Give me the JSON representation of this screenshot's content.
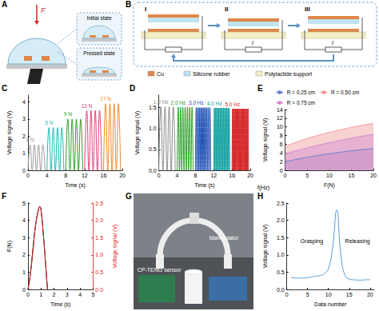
{
  "chart_data": [
    {
      "panel": "C",
      "type": "line",
      "xlabel": "Time (s)",
      "ylabel": "Voltage signal (V)",
      "xlim": [
        0,
        20
      ],
      "xticks": [
        0,
        4,
        8,
        12,
        16,
        20
      ],
      "ylim": [
        0,
        4.4
      ],
      "yticks": [
        0,
        1,
        2,
        3,
        4
      ],
      "grid": false,
      "series": [
        {
          "name": "1 N",
          "color": "#9e9e9e",
          "line_style": "solid",
          "x": [
            0,
            0.45,
            0.9,
            1.35,
            1.8,
            2.25,
            2.7,
            3.15,
            3.6
          ],
          "values": [
            0,
            1.5,
            0,
            1.5,
            0,
            1.5,
            0,
            1.5,
            0
          ]
        },
        {
          "name": "5 N",
          "color": "#1fb5b5",
          "line_style": "solid",
          "x": [
            4,
            4.45,
            4.9,
            5.35,
            5.8,
            6.25,
            6.7,
            7.15,
            7.6
          ],
          "values": [
            0,
            2.5,
            0,
            2.5,
            0,
            2.5,
            0,
            2.5,
            0
          ]
        },
        {
          "name": "9 N",
          "color": "#2ca02c",
          "line_style": "solid",
          "x": [
            8,
            8.45,
            8.9,
            9.35,
            9.8,
            10.25,
            10.7,
            11.15,
            11.6
          ],
          "values": [
            0,
            3.0,
            0,
            3.0,
            0,
            3.0,
            0,
            3.0,
            0
          ]
        },
        {
          "name": "13 N",
          "color": "#e0407a",
          "line_style": "solid",
          "x": [
            12,
            12.45,
            12.9,
            13.35,
            13.8,
            14.25,
            14.7,
            15.15,
            15.6
          ],
          "values": [
            0,
            3.5,
            0,
            3.5,
            0,
            3.5,
            0,
            3.5,
            0
          ]
        },
        {
          "name": "17 N",
          "color": "#f08a24",
          "line_style": "solid",
          "x": [
            16,
            16.45,
            16.9,
            17.35,
            17.8,
            18.25,
            18.7,
            19.15,
            19.6
          ],
          "values": [
            0,
            3.9,
            0,
            3.9,
            0,
            3.9,
            0,
            3.9,
            0
          ]
        }
      ]
    },
    {
      "panel": "D",
      "type": "line",
      "xlabel": "Time (s)",
      "ylabel": "Voltage signal (V)",
      "xlim": [
        0,
        20
      ],
      "xticks": [
        0,
        4,
        8,
        12,
        16,
        20
      ],
      "ylim": [
        0,
        1.8
      ],
      "yticks": [
        {
          "value": 0,
          "label": "0.0"
        },
        {
          "value": 0.5,
          "label": "0.5"
        },
        {
          "value": 1,
          "label": "1.0"
        },
        {
          "value": 1.5,
          "label": "1.5"
        }
      ],
      "grid": false,
      "series": [
        {
          "name": "1.0 Hz",
          "color": "#8c8c8c",
          "line_style": "solid",
          "x": [
            0,
            0.45,
            0.9,
            1.35,
            1.8,
            2.25,
            2.7,
            3.15,
            3.6
          ],
          "values": [
            0,
            1.52,
            0,
            1.52,
            0,
            1.52,
            0,
            1.52,
            0
          ]
        },
        {
          "name": "2.0 Hz",
          "color": "#2ca02c",
          "line_style": "solid",
          "x": [
            4,
            4.25,
            4.5,
            4.75,
            5,
            5.25,
            5.5,
            5.75,
            6,
            6.25,
            6.5,
            6.75,
            7,
            7.25,
            7.5
          ],
          "values": [
            0,
            1.51,
            0,
            1.51,
            0,
            1.51,
            0,
            1.51,
            0,
            1.51,
            0,
            1.51,
            0,
            1.51,
            0
          ]
        },
        {
          "name": "3.0 Hz",
          "color": "#1f4fb4",
          "line_style": "solid",
          "x": [
            8,
            8.17,
            8.33,
            8.5,
            8.67,
            8.83,
            9,
            9.17,
            9.33,
            9.5,
            9.67,
            9.83,
            10,
            10.17,
            10.33,
            10.5,
            10.67,
            10.83,
            11,
            11.17,
            11.33
          ],
          "values": [
            0,
            1.5,
            0,
            1.5,
            0,
            1.5,
            0,
            1.5,
            0,
            1.5,
            0,
            1.5,
            0,
            1.5,
            0,
            1.5,
            0,
            1.5,
            0,
            1.5,
            0
          ]
        },
        {
          "name": "4.0 Hz",
          "color": "#17a2a2",
          "line_style": "solid",
          "x": [
            12,
            12.125,
            12.25,
            12.375,
            12.5,
            12.625,
            12.75,
            12.875,
            13,
            13.125,
            13.25,
            13.375,
            13.5,
            13.625,
            13.75,
            13.875,
            14,
            14.125,
            14.25,
            14.375,
            14.5,
            14.625,
            14.75,
            14.875,
            15,
            15.125,
            15.25,
            15.375,
            15.5
          ],
          "values": [
            0,
            1.49,
            0,
            1.49,
            0,
            1.49,
            0,
            1.49,
            0,
            1.49,
            0,
            1.49,
            0,
            1.49,
            0,
            1.49,
            0,
            1.49,
            0,
            1.49,
            0,
            1.49,
            0,
            1.49,
            0,
            1.49,
            0,
            1.49,
            0
          ]
        },
        {
          "name": "5.0 Hz",
          "color": "#d62728",
          "line_style": "solid",
          "x": [
            16,
            16.1,
            16.2,
            16.3,
            16.4,
            16.5,
            16.6,
            16.7,
            16.8,
            16.9,
            17,
            17.1,
            17.2,
            17.3,
            17.4,
            17.5,
            17.6,
            17.7,
            17.8,
            17.9,
            18,
            18.1,
            18.2,
            18.3,
            18.4,
            18.5,
            18.6,
            18.7,
            18.8,
            18.9,
            19,
            19.1,
            19.2,
            19.3,
            19.4,
            19.5,
            19.6
          ],
          "values": [
            0,
            1.47,
            0,
            1.47,
            0,
            1.47,
            0,
            1.47,
            0,
            1.47,
            0,
            1.47,
            0,
            1.47,
            0,
            1.47,
            0,
            1.47,
            0,
            1.47,
            0,
            1.47,
            0,
            1.47,
            0,
            1.47,
            0,
            1.47,
            0,
            1.47,
            0,
            1.47,
            0,
            1.47,
            0,
            1.47,
            0
          ]
        }
      ]
    },
    {
      "panel": "E",
      "type": "area",
      "xlabel": "F(N)",
      "ylabel": "Voltage signal (V)",
      "zlabel": "f(Hz)",
      "xlim": [
        0,
        20
      ],
      "xticks": [
        0,
        5,
        10,
        15,
        20
      ],
      "ylim": [
        0,
        14
      ],
      "yticks": [
        0,
        2,
        4,
        6,
        8,
        10,
        12,
        14
      ],
      "grid": false,
      "legend": "top",
      "series": [
        {
          "name": "R = 0.25 cm",
          "color": "#6a7fd0",
          "line_style": "solid",
          "x": [
            0,
            4,
            8,
            12,
            16,
            20
          ],
          "values": [
            2.0,
            2.8,
            3.5,
            4.1,
            4.6,
            5.0
          ]
        },
        {
          "name": "R = 0.50 cm",
          "color": "#f09a9a",
          "line_style": "solid",
          "x": [
            0,
            4,
            8,
            12,
            16,
            20
          ],
          "values": [
            5.5,
            7.0,
            8.2,
            9.2,
            10.1,
            10.8
          ]
        },
        {
          "name": "R = 0.75 cm",
          "color": "#d38ad0",
          "line_style": "solid",
          "x": [
            0,
            4,
            8,
            12,
            16,
            20
          ],
          "values": [
            3.8,
            4.9,
            5.9,
            6.8,
            7.6,
            8.3
          ]
        }
      ]
    },
    {
      "panel": "F",
      "type": "line",
      "xlabel": "Time (s)",
      "ylabel": "F(N)",
      "y2label": "Voltage signal (V)",
      "xlim": [
        0,
        5
      ],
      "xticks": [
        0,
        1,
        2,
        3,
        4,
        5
      ],
      "ylim": [
        0,
        5
      ],
      "yticks": [
        0,
        1,
        2,
        3,
        4,
        5
      ],
      "y2lim": [
        0,
        2.5
      ],
      "y2ticks": [
        {
          "value": 0,
          "label": "0.0"
        },
        {
          "value": 0.5,
          "label": "0.5"
        },
        {
          "value": 1,
          "label": "1.0"
        },
        {
          "value": 1.5,
          "label": "1.5"
        },
        {
          "value": 2,
          "label": "2.0"
        },
        {
          "value": 2.5,
          "label": "2.5"
        }
      ],
      "grid": false,
      "series": [
        {
          "color": "#000000",
          "line_style": "solid",
          "x": [
            0,
            0.2,
            0.4,
            0.6,
            0.8,
            0.9,
            1.0,
            1.2,
            1.4,
            1.5
          ],
          "values": [
            0,
            1.0,
            2.5,
            3.8,
            4.6,
            4.8,
            4.6,
            3.0,
            1.0,
            0
          ]
        },
        {
          "color": "#e02020",
          "line_style": "solid",
          "axis": "y2",
          "x": [
            0,
            0.2,
            0.4,
            0.6,
            0.8,
            0.9,
            1.0,
            1.2,
            1.4,
            1.5
          ],
          "values": [
            0,
            0.5,
            1.2,
            1.9,
            2.3,
            2.4,
            2.3,
            1.5,
            0.5,
            0
          ]
        }
      ]
    },
    {
      "panel": "H",
      "type": "line",
      "xlabel": "Data number",
      "ylabel": "Voltage signal (V)",
      "xlim": [
        0,
        21
      ],
      "xticks": [
        0,
        5,
        10,
        15,
        20
      ],
      "ylim": [
        0,
        2.5
      ],
      "yticks": [
        {
          "value": 0,
          "label": "0.0"
        },
        {
          "value": 0.5,
          "label": "0.5"
        },
        {
          "value": 1,
          "label": "1.0"
        },
        {
          "value": 1.5,
          "label": "1.5"
        },
        {
          "value": 2,
          "label": "2.0"
        },
        {
          "value": 2.5,
          "label": "2.5"
        }
      ],
      "grid": false,
      "annotations": [
        {
          "text": "Grasping",
          "x": 6,
          "y": 1.4
        },
        {
          "text": "Releasing",
          "x": 17,
          "y": 1.4
        }
      ],
      "series": [
        {
          "color": "#5b9bd5",
          "line_style": "solid",
          "x": [
            1,
            2,
            3,
            4,
            5,
            6,
            7,
            8,
            9,
            10,
            11,
            12,
            13,
            14,
            15,
            16,
            17,
            18,
            19,
            20
          ],
          "values": [
            0.35,
            0.33,
            0.33,
            0.33,
            0.34,
            0.36,
            0.38,
            0.4,
            0.45,
            0.6,
            1.2,
            2.3,
            1.0,
            0.4,
            0.3,
            0.28,
            0.27,
            0.27,
            0.28,
            0.28
          ]
        }
      ]
    }
  ],
  "diagrams": [
    {
      "panel": "A",
      "force": "F",
      "insets": [
        "Initial state",
        "Pressed state"
      ]
    },
    {
      "panel": "B",
      "stages": [
        "I",
        "II",
        "III"
      ],
      "current": "I",
      "materials": [
        {
          "name": "Cu",
          "color": "#e0874a"
        },
        {
          "name": "Silicone rubber",
          "color": "#bfe3f0"
        },
        {
          "name": "Polylactide support",
          "color": "#f2efc4"
        }
      ]
    },
    {
      "panel": "G",
      "labels": [
        "Manipulator",
        "CP-TENG sensor"
      ]
    }
  ]
}
